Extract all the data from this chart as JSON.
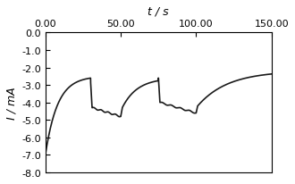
{
  "title": "t / s",
  "ylabel": "I / mA",
  "xlim": [
    0,
    150
  ],
  "ylim": [
    -8.0,
    0.0
  ],
  "xticks": [
    0,
    50,
    100,
    150
  ],
  "xticklabels": [
    "0.00",
    "50.00",
    "100.00",
    "150.00"
  ],
  "yticks": [
    0.0,
    -1.0,
    -2.0,
    -3.0,
    -4.0,
    -5.0,
    -6.0,
    -7.0,
    -8.0
  ],
  "line_color": "#1a1a1a",
  "line_width": 1.2,
  "bg_color": "#ffffff"
}
